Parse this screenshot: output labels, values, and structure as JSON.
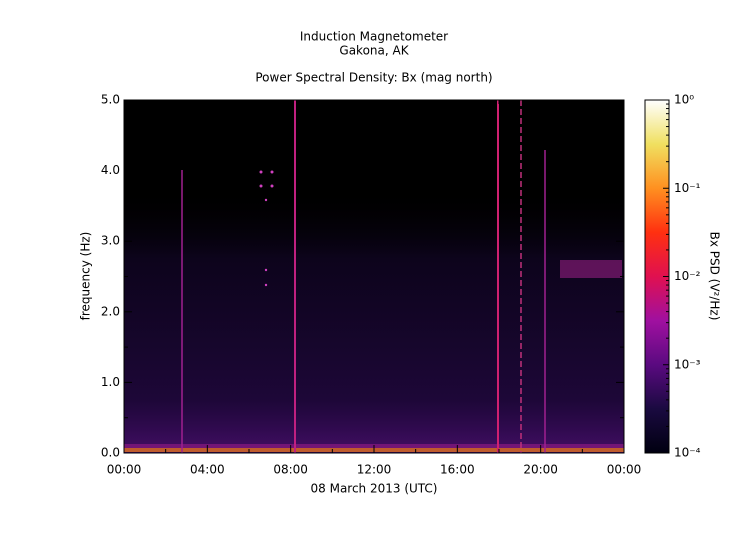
{
  "chart_data": {
    "type": "spectrogram",
    "title": "Induction Magnetometer",
    "subtitle": "Gakona, AK",
    "plot_title": "Power Spectral Density: Bx (mag north)",
    "x_label": "08 March 2013 (UTC)",
    "y_label": "frequency (Hz)",
    "xlim": [
      0,
      24
    ],
    "xticks": [
      {
        "value": 0,
        "label": "00:00"
      },
      {
        "value": 4,
        "label": "04:00"
      },
      {
        "value": 8,
        "label": "08:00"
      },
      {
        "value": 12,
        "label": "12:00"
      },
      {
        "value": 16,
        "label": "16:00"
      },
      {
        "value": 20,
        "label": "20:00"
      },
      {
        "value": 24,
        "label": "00:00"
      }
    ],
    "ylim": [
      0,
      5
    ],
    "yticks": [
      {
        "value": 0,
        "label": "0.0"
      },
      {
        "value": 1,
        "label": "1.0"
      },
      {
        "value": 2,
        "label": "2.0"
      },
      {
        "value": 3,
        "label": "3.0"
      },
      {
        "value": 4,
        "label": "4.0"
      },
      {
        "value": 5,
        "label": "5.0"
      }
    ],
    "colorbar": {
      "label": "Bx PSD (V²/Hz)",
      "scale": "log",
      "lim": [
        0.0001,
        1
      ],
      "ticks": [
        {
          "value": 0.0001,
          "label": "10⁻⁴"
        },
        {
          "value": 0.001,
          "label": "10⁻³"
        },
        {
          "value": 0.01,
          "label": "10⁻²"
        },
        {
          "value": 0.1,
          "label": "10⁻¹"
        },
        {
          "value": 1,
          "label": "10⁰"
        }
      ],
      "colormap": [
        "#000010",
        "#1a0a40",
        "#5a0a80",
        "#a010a0",
        "#e01050",
        "#ff3010",
        "#ff9020",
        "#f0e060",
        "#ffffff"
      ]
    }
  }
}
